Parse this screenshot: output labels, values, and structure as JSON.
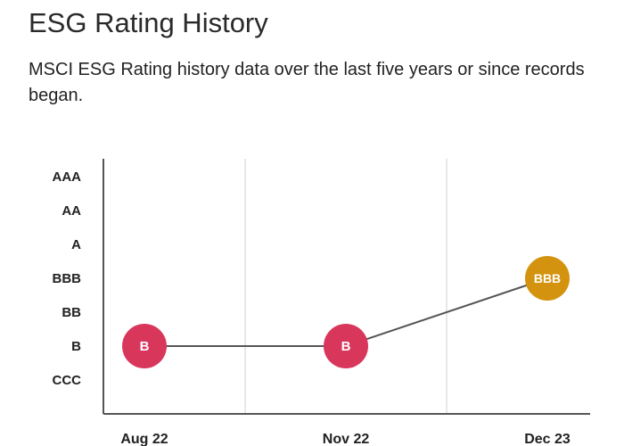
{
  "header": {
    "title": "ESG Rating History",
    "subtitle": "MSCI ESG Rating history data over the last five years or since records began."
  },
  "colors": {
    "axis": "#555555",
    "gridline": "#d0d0d0",
    "line": "#555555",
    "rating_B": "#d9365c",
    "rating_BBB": "#d4930f"
  },
  "chart_data": {
    "type": "line",
    "title": "ESG Rating History",
    "subtitle": "MSCI ESG Rating history data over the last five years or since records began.",
    "xlabel": "",
    "ylabel": "",
    "y_categories": [
      "AAA",
      "AA",
      "A",
      "BBB",
      "BB",
      "B",
      "CCC"
    ],
    "x": [
      "Aug 22",
      "Nov 22",
      "Dec 23"
    ],
    "series": [
      {
        "values": [
          "B",
          "B",
          "BBB"
        ],
        "marker_colors": [
          "#d9365c",
          "#d9365c",
          "#d4930f"
        ]
      }
    ],
    "grid": true,
    "legend": "none"
  }
}
